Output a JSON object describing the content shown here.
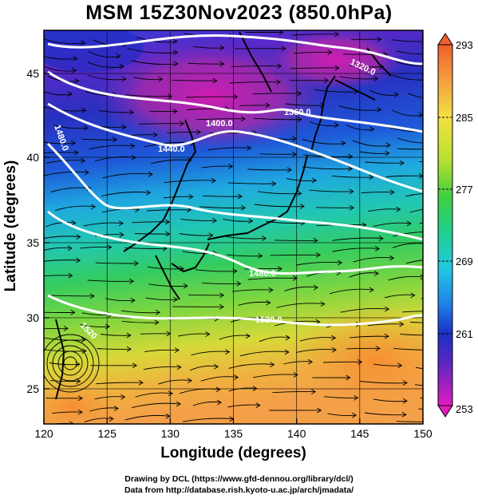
{
  "title": "MSM 15Z30Nov2023 (850.0hPa)",
  "xlabel": "Longitude (degrees)",
  "ylabel": "Latitude  (degrees)",
  "x_ticks": [
    "120",
    "125",
    "130",
    "135",
    "140",
    "145",
    "150"
  ],
  "y_ticks": [
    "25",
    "30",
    "35",
    "40",
    "45"
  ],
  "colorbar_ticks": [
    "293",
    "285",
    "277",
    "269",
    "261",
    "253"
  ],
  "contour_labels": [
    "1320.0",
    "1360.0",
    "1400.0",
    "1440.0",
    "1480.0",
    "1480.0",
    "1520.0",
    "1520"
  ],
  "credits": {
    "line1": "Drawing by DCL (https://www.gfd-dennou.org/library/dcl/)",
    "line2": "Data from http://database.rish.kyoto-u.ac.jp/arch/jmadata/"
  },
  "chart_data": {
    "type": "heatmap",
    "title": "MSM 15Z30Nov2023 (850.0hPa)",
    "xlabel": "Longitude (degrees)",
    "ylabel": "Latitude  (degrees)",
    "xlim": [
      120,
      150
    ],
    "ylim": [
      22.4,
      47.6
    ],
    "x_ticks": [
      120,
      125,
      130,
      135,
      140,
      145,
      150
    ],
    "y_ticks": [
      25,
      30,
      35,
      40,
      45
    ],
    "colorbar": {
      "min": 253,
      "max": 293,
      "ticks": [
        293,
        285,
        277,
        269,
        261,
        253
      ],
      "extend": "both"
    },
    "overlays": [
      "temperature shading",
      "geopotential height contours (white)",
      "wind streamlines (black)",
      "coastlines"
    ],
    "contours": [
      {
        "value": 1320.0,
        "label": "1320.0"
      },
      {
        "value": 1360.0,
        "label": "1360.0"
      },
      {
        "value": 1400.0,
        "label": "1400.0"
      },
      {
        "value": 1440.0,
        "label": "1440.0"
      },
      {
        "value": 1480.0,
        "label": "1480.0"
      },
      {
        "value": 1520.0,
        "label": "1520.0"
      }
    ],
    "colors": [
      "#d81cb0",
      "#1a2fc8",
      "#1fa0e6",
      "#20d0a0",
      "#3fd22a",
      "#b6e21e",
      "#f0a030",
      "#f8d080"
    ]
  }
}
